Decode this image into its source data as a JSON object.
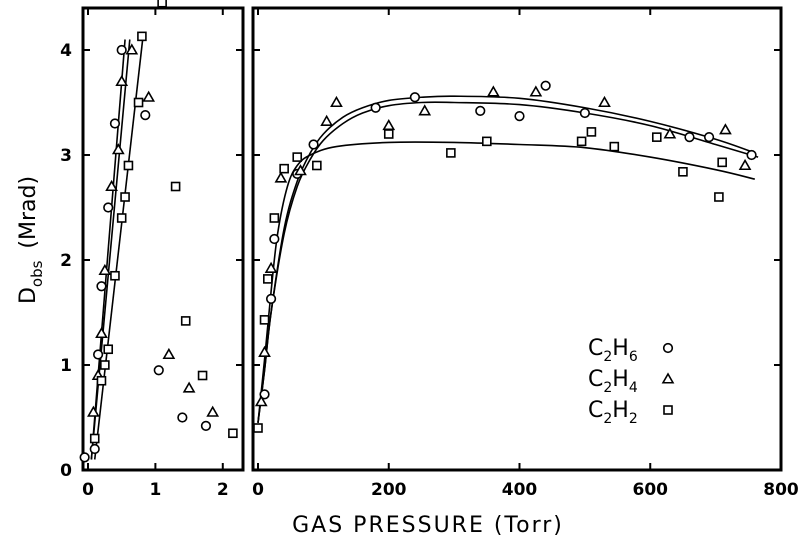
{
  "chart_data": {
    "type": "scatter",
    "xlabel": "GAS PRESSURE (Torr)",
    "ylabel": {
      "main": "D",
      "sub": "obs",
      "unit": "(Mrad)"
    },
    "ylim": [
      0,
      4.4
    ],
    "yticks": [
      "0",
      "1",
      "2",
      "3",
      "4"
    ],
    "grid": false,
    "legend_position": "bottom-right",
    "panels": [
      {
        "name": "left",
        "xlim": [
          0,
          2.3
        ],
        "xticks": [
          "0",
          "1",
          "2"
        ],
        "series": [
          {
            "name": "C2H6",
            "marker": "circle",
            "points": [
              [
                -0.05,
                0.12
              ],
              [
                0.1,
                0.2
              ],
              [
                0.15,
                1.1
              ],
              [
                0.2,
                1.75
              ],
              [
                0.3,
                2.5
              ],
              [
                0.4,
                3.3
              ],
              [
                0.5,
                4.0
              ],
              [
                0.85,
                3.38
              ],
              [
                1.05,
                0.95
              ],
              [
                1.4,
                0.5
              ],
              [
                1.75,
                0.42
              ]
            ]
          },
          {
            "name": "C2H4",
            "marker": "triangle",
            "points": [
              [
                0.08,
                0.55
              ],
              [
                0.15,
                0.9
              ],
              [
                0.2,
                1.3
              ],
              [
                0.25,
                1.9
              ],
              [
                0.35,
                2.7
              ],
              [
                0.45,
                3.05
              ],
              [
                0.5,
                3.7
              ],
              [
                0.65,
                4.0
              ],
              [
                0.9,
                3.55
              ],
              [
                1.2,
                1.1
              ],
              [
                1.5,
                0.78
              ],
              [
                1.85,
                0.55
              ]
            ]
          },
          {
            "name": "C2H2",
            "marker": "square",
            "points": [
              [
                0.1,
                0.3
              ],
              [
                0.2,
                0.85
              ],
              [
                0.25,
                1.0
              ],
              [
                0.3,
                1.15
              ],
              [
                0.4,
                1.85
              ],
              [
                0.5,
                2.4
              ],
              [
                0.55,
                2.6
              ],
              [
                0.6,
                2.9
              ],
              [
                0.75,
                3.5
              ],
              [
                0.8,
                4.13
              ],
              [
                1.1,
                4.45
              ],
              [
                1.3,
                2.7
              ],
              [
                1.45,
                1.42
              ],
              [
                1.7,
                0.9
              ],
              [
                2.15,
                0.35
              ]
            ]
          }
        ],
        "fit_lines": [
          {
            "series": "C2H6",
            "from": [
              0.05,
              0.1
            ],
            "to": [
              0.55,
              4.1
            ]
          },
          {
            "series": "C2H4",
            "from": [
              0.05,
              0.1
            ],
            "to": [
              0.62,
              4.1
            ]
          },
          {
            "series": "C2H2",
            "from": [
              0.1,
              0.1
            ],
            "to": [
              0.82,
              4.15
            ]
          }
        ]
      },
      {
        "name": "right",
        "xlim": [
          0,
          800
        ],
        "xticks": [
          "0",
          "200",
          "400",
          "600",
          "800"
        ],
        "series": [
          {
            "name": "C2H6",
            "marker": "circle",
            "points": [
              [
                10,
                0.72
              ],
              [
                20,
                1.63
              ],
              [
                25,
                2.2
              ],
              [
                60,
                2.82
              ],
              [
                85,
                3.1
              ],
              [
                180,
                3.45
              ],
              [
                240,
                3.55
              ],
              [
                340,
                3.42
              ],
              [
                400,
                3.37
              ],
              [
                440,
                3.66
              ],
              [
                500,
                3.4
              ],
              [
                660,
                3.17
              ],
              [
                690,
                3.17
              ],
              [
                755,
                3.0
              ]
            ]
          },
          {
            "name": "C2H4",
            "marker": "triangle",
            "points": [
              [
                5,
                0.65
              ],
              [
                10,
                1.12
              ],
              [
                20,
                1.92
              ],
              [
                35,
                2.78
              ],
              [
                65,
                2.85
              ],
              [
                105,
                3.32
              ],
              [
                120,
                3.5
              ],
              [
                200,
                3.28
              ],
              [
                255,
                3.42
              ],
              [
                360,
                3.6
              ],
              [
                425,
                3.6
              ],
              [
                530,
                3.5
              ],
              [
                630,
                3.2
              ],
              [
                715,
                3.24
              ],
              [
                745,
                2.9
              ]
            ]
          },
          {
            "name": "C2H2",
            "marker": "square",
            "points": [
              [
                0,
                0.4
              ],
              [
                10,
                1.43
              ],
              [
                15,
                1.82
              ],
              [
                25,
                2.4
              ],
              [
                40,
                2.87
              ],
              [
                60,
                2.98
              ],
              [
                90,
                2.9
              ],
              [
                200,
                3.2
              ],
              [
                295,
                3.02
              ],
              [
                350,
                3.13
              ],
              [
                495,
                3.13
              ],
              [
                510,
                3.22
              ],
              [
                545,
                3.08
              ],
              [
                610,
                3.17
              ],
              [
                650,
                2.84
              ],
              [
                705,
                2.6
              ],
              [
                710,
                2.93
              ]
            ]
          }
        ],
        "fit_curves": [
          {
            "series": "C2H6",
            "points": [
              [
                0,
                0.45
              ],
              [
                10,
                0.95
              ],
              [
                20,
                1.5
              ],
              [
                40,
                2.3
              ],
              [
                60,
                2.75
              ],
              [
                80,
                3.02
              ],
              [
                100,
                3.2
              ],
              [
                130,
                3.36
              ],
              [
                160,
                3.45
              ],
              [
                200,
                3.52
              ],
              [
                250,
                3.55
              ],
              [
                300,
                3.56
              ],
              [
                400,
                3.54
              ],
              [
                500,
                3.45
              ],
              [
                600,
                3.32
              ],
              [
                700,
                3.15
              ],
              [
                760,
                3.02
              ]
            ]
          },
          {
            "series": "C2H4",
            "points": [
              [
                0,
                0.45
              ],
              [
                10,
                0.95
              ],
              [
                20,
                1.5
              ],
              [
                40,
                2.25
              ],
              [
                60,
                2.7
              ],
              [
                80,
                2.96
              ],
              [
                100,
                3.14
              ],
              [
                130,
                3.3
              ],
              [
                160,
                3.4
              ],
              [
                200,
                3.47
              ],
              [
                250,
                3.5
              ],
              [
                300,
                3.5
              ],
              [
                400,
                3.48
              ],
              [
                500,
                3.4
              ],
              [
                600,
                3.28
              ],
              [
                700,
                3.1
              ],
              [
                765,
                2.98
              ]
            ]
          },
          {
            "series": "C2H2",
            "points": [
              [
                0,
                0.45
              ],
              [
                10,
                1.05
              ],
              [
                20,
                1.7
              ],
              [
                30,
                2.25
              ],
              [
                45,
                2.7
              ],
              [
                60,
                2.9
              ],
              [
                80,
                3.0
              ],
              [
                120,
                3.08
              ],
              [
                200,
                3.12
              ],
              [
                300,
                3.12
              ],
              [
                400,
                3.1
              ],
              [
                500,
                3.07
              ],
              [
                600,
                2.98
              ],
              [
                700,
                2.86
              ],
              [
                760,
                2.77
              ]
            ]
          }
        ]
      }
    ]
  },
  "legend": [
    {
      "element": "C",
      "sub1": "2",
      "h": "H",
      "sub2": "6",
      "marker": "circle"
    },
    {
      "element": "C",
      "sub1": "2",
      "h": "H",
      "sub2": "4",
      "marker": "triangle"
    },
    {
      "element": "C",
      "sub1": "2",
      "h": "H",
      "sub2": "2",
      "marker": "square"
    }
  ]
}
